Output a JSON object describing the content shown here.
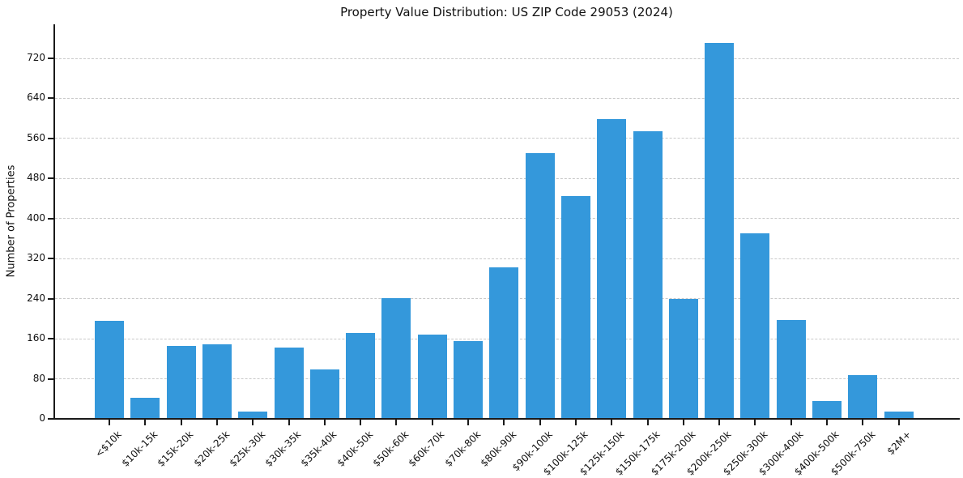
{
  "chart_data": {
    "type": "bar",
    "title": "Property Value Distribution: US ZIP Code 29053 (2024)",
    "xlabel": "",
    "ylabel": "Number of Properties",
    "categories": [
      "<$10k",
      "$10k-15k",
      "$15k-20k",
      "$20k-25k",
      "$25k-30k",
      "$30k-35k",
      "$35k-40k",
      "$40k-50k",
      "$50k-60k",
      "$60k-70k",
      "$70k-80k",
      "$80k-90k",
      "$90k-100k",
      "$100k-125k",
      "$125k-150k",
      "$150k-175k",
      "$175k-200k",
      "$200k-250k",
      "$250k-300k",
      "$300k-400k",
      "$400k-500k",
      "$500k-750k",
      "$2M+"
    ],
    "values": [
      196,
      42,
      146,
      149,
      15,
      142,
      98,
      172,
      241,
      168,
      156,
      303,
      530,
      445,
      598,
      575,
      240,
      751,
      371,
      197,
      36,
      88,
      15
    ],
    "yticks": [
      0,
      80,
      160,
      240,
      320,
      400,
      480,
      560,
      640,
      720
    ],
    "ylim": [
      0,
      788
    ],
    "grid": "horizontal-dashed",
    "legend": "none",
    "colors": {
      "bar": "#3498db",
      "axis": "#1a1a1a",
      "grid": "#c9c9c9",
      "text": "#111111"
    }
  }
}
